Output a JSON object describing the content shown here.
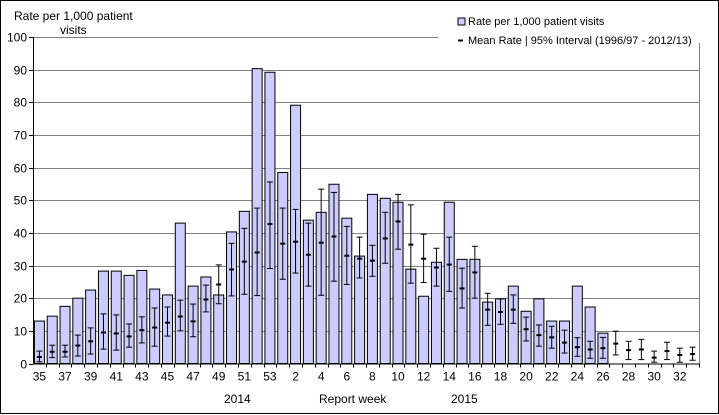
{
  "chart_data": {
    "type": "bar",
    "ylabel": [
      "Rate per 1,000  patient",
      "visits"
    ],
    "xlabel": "Report week",
    "year_labels": [
      "2014",
      "2015"
    ],
    "ylim": [
      0,
      100
    ],
    "yticks": [
      0,
      10,
      20,
      30,
      40,
      50,
      60,
      70,
      80,
      90,
      100
    ],
    "grid": true,
    "legend_position": "top-right",
    "colors": {
      "bar_fill": "#ccccff",
      "bar_stroke": "#000000",
      "errorbar": "#000000",
      "grid": "#808080"
    },
    "categories": [
      "35",
      "36",
      "37",
      "38",
      "39",
      "40",
      "41",
      "42",
      "43",
      "44",
      "45",
      "46",
      "47",
      "48",
      "49",
      "50",
      "51",
      "52",
      "53",
      "1",
      "2",
      "3",
      "4",
      "5",
      "6",
      "7",
      "8",
      "9",
      "10",
      "11",
      "12",
      "13",
      "14",
      "15",
      "16",
      "17",
      "18",
      "19",
      "20",
      "21",
      "22",
      "23",
      "24",
      "25",
      "26",
      "27",
      "28",
      "29",
      "30",
      "31",
      "32",
      "33"
    ],
    "series": [
      {
        "name": "Rate per 1,000 patient visits",
        "kind": "bar",
        "values": [
          13,
          14.5,
          17.5,
          20,
          22.5,
          28.3,
          28.3,
          27,
          28.5,
          22.8,
          21,
          43,
          23.7,
          26.5,
          21,
          40.3,
          46.6,
          90.3,
          89.2,
          58.5,
          79.1,
          43.9,
          46.3,
          54.9,
          44.5,
          32.9,
          51.8,
          50.6,
          49.4,
          28.9,
          20.6,
          31,
          49.4,
          31.9,
          31.9,
          18.8,
          19.8,
          23.7,
          16,
          19.8,
          13,
          13,
          23.7,
          17.3,
          9.3,
          null,
          null,
          null,
          null,
          null,
          null,
          null
        ]
      },
      {
        "name": "Mean Rate | 95% Interval (1996/97 - 2012/13)",
        "kind": "errorbar",
        "mean": [
          2,
          3.6,
          3.6,
          5.5,
          6.8,
          9.5,
          9.2,
          8.3,
          10.2,
          11,
          12.5,
          14.4,
          12.9,
          19.6,
          24.2,
          28.8,
          31.2,
          34,
          42.7,
          36.7,
          37.3,
          33.3,
          37,
          38.9,
          33,
          32.1,
          31.5,
          38.3,
          43.5,
          36.4,
          32.1,
          29.4,
          30.3,
          23,
          27.9,
          16.5,
          15.8,
          16.5,
          10.5,
          8.7,
          8,
          6.4,
          5,
          4.3,
          4.7,
          6.1,
          4.1,
          4.3,
          1.8,
          3.8,
          2.6,
          2.9
        ],
        "lower": [
          0.5,
          1.8,
          2,
          2.3,
          2.9,
          4.4,
          4.1,
          5,
          6.3,
          5.3,
          8.4,
          10,
          8.2,
          15.8,
          18.3,
          20.7,
          21.2,
          20.8,
          29.1,
          25.8,
          27.7,
          23.7,
          20.9,
          25.2,
          24.2,
          26.2,
          26.7,
          30.7,
          35,
          24.6,
          24.8,
          23.7,
          22.1,
          17,
          20,
          11.7,
          12,
          12.3,
          6.9,
          5.3,
          4.7,
          3.2,
          2.2,
          1.6,
          1.6,
          2.6,
          1.2,
          1.2,
          0.4,
          1.2,
          0.4,
          1
        ],
        "upper": [
          3.8,
          5.6,
          5.6,
          8.7,
          10.9,
          15.2,
          14.9,
          12.1,
          14.3,
          17,
          17.3,
          19.4,
          18.2,
          24,
          30.2,
          36.8,
          41.4,
          47.6,
          55.6,
          47.6,
          47.2,
          43,
          53.4,
          52.4,
          42,
          38.7,
          36.2,
          46.3,
          51.8,
          48.6,
          39.6,
          35.3,
          38.7,
          29.2,
          35.9,
          21.5,
          19.8,
          21,
          14.2,
          11.8,
          11.4,
          10.2,
          7.9,
          6.8,
          8,
          9.9,
          6.8,
          7.4,
          3.8,
          6.5,
          4.7,
          5
        ]
      }
    ]
  }
}
